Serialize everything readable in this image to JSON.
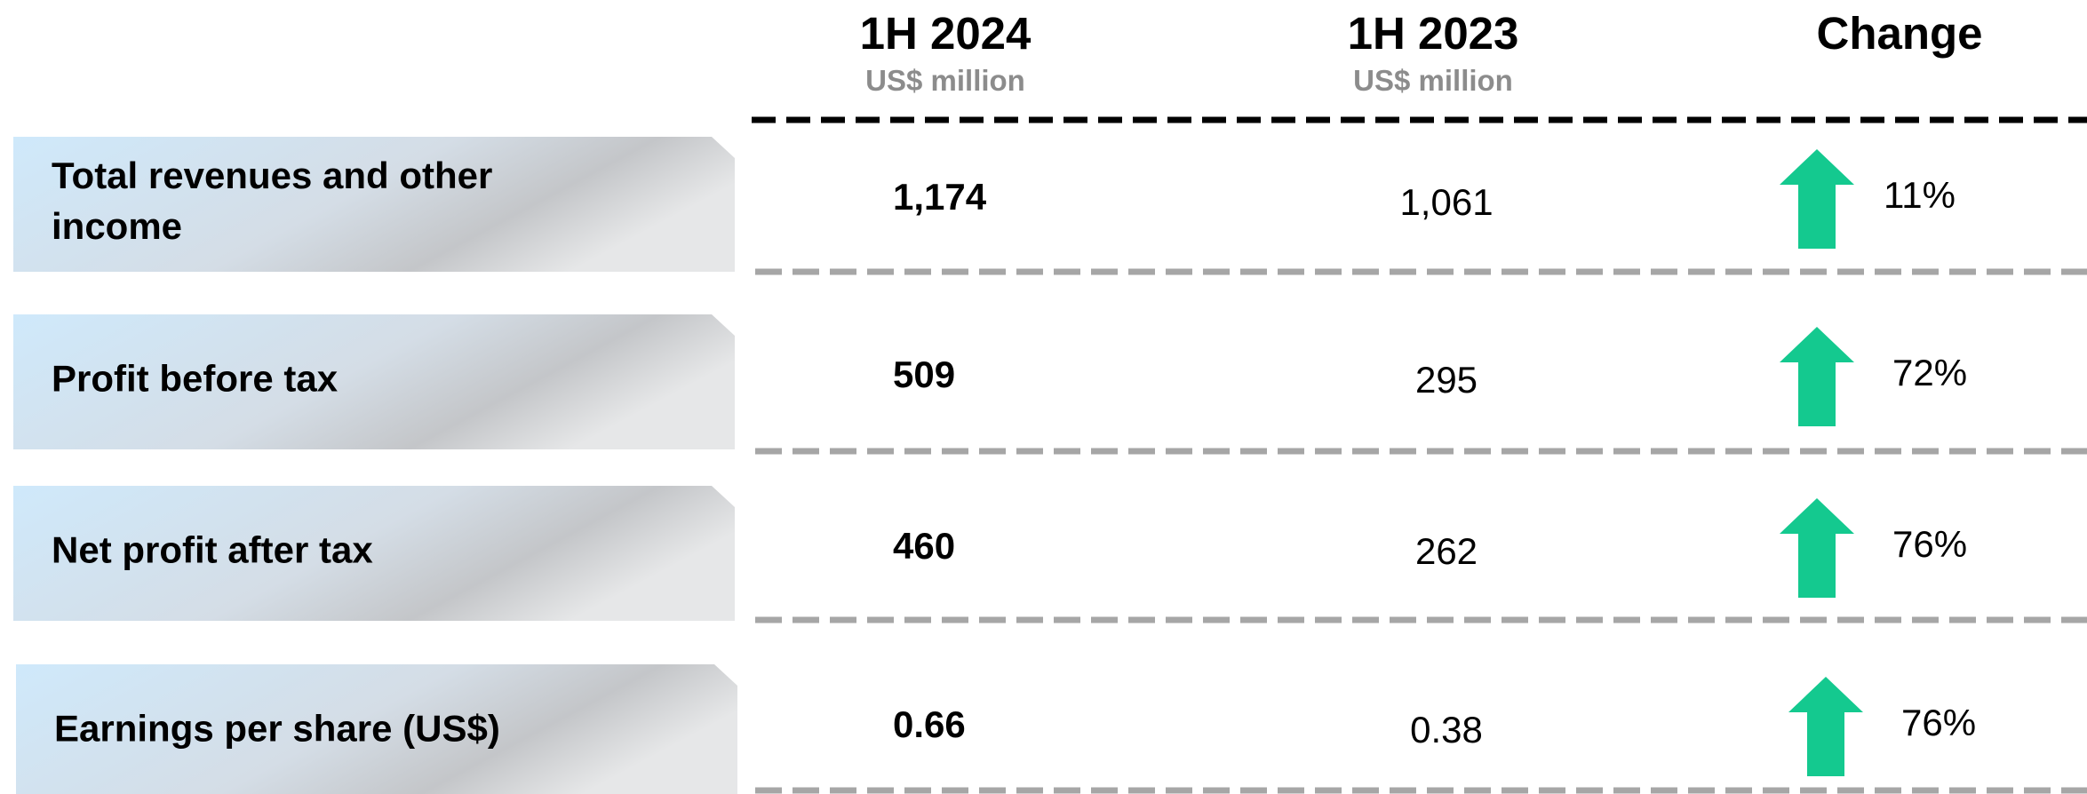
{
  "header": {
    "columns": [
      {
        "title": "1H 2024",
        "unit": "US$ million"
      },
      {
        "title": "1H 2023",
        "unit": "US$ million"
      },
      {
        "title": "Change"
      }
    ]
  },
  "table": {
    "rows": [
      {
        "label": "Total revenues and other income",
        "cells": [
          "1,174",
          "1,061",
          "11%"
        ]
      },
      {
        "label": "Profit before tax",
        "cells": [
          "509",
          "295",
          "72%"
        ]
      },
      {
        "label": "Net profit after tax",
        "cells": [
          "460",
          "262",
          "76%"
        ]
      },
      {
        "label": "Earnings per share (US$)",
        "cells": [
          "0.66",
          "0.38",
          "76%"
        ]
      }
    ]
  }
}
